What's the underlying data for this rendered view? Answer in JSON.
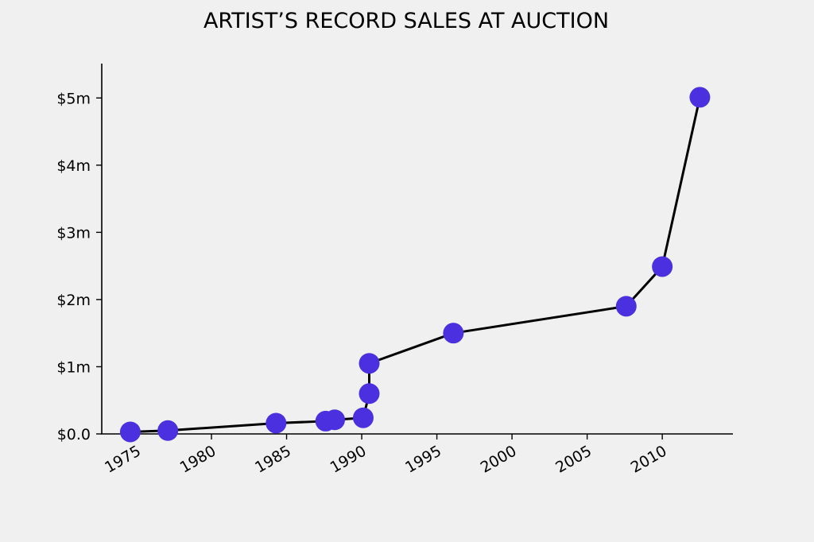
{
  "chart_data": {
    "type": "line",
    "title": "ARTIST’S RECORD SALES AT AUCTION",
    "xlabel": "",
    "ylabel": "",
    "xlim": [
      1972.7,
      2014.7
    ],
    "ylim": [
      0,
      5.5
    ],
    "x_ticks": [
      {
        "value": 1975,
        "label": "1975"
      },
      {
        "value": 1980,
        "label": "1980"
      },
      {
        "value": 1985,
        "label": "1985"
      },
      {
        "value": 1990,
        "label": "1990"
      },
      {
        "value": 1995,
        "label": "1995"
      },
      {
        "value": 2000,
        "label": "2000"
      },
      {
        "value": 2005,
        "label": "2005"
      },
      {
        "value": 2010,
        "label": "2010"
      }
    ],
    "y_ticks": [
      {
        "value": 0,
        "label": "$0.0"
      },
      {
        "value": 1,
        "label": "$1m"
      },
      {
        "value": 2,
        "label": "$2m"
      },
      {
        "value": 3,
        "label": "$3m"
      },
      {
        "value": 4,
        "label": "$4m"
      },
      {
        "value": 5,
        "label": "$5m"
      }
    ],
    "grid": false,
    "series": [
      {
        "color": "#4b30e0",
        "points": [
          {
            "x": 1974.6,
            "y": 0.03
          },
          {
            "x": 1977.1,
            "y": 0.05
          },
          {
            "x": 1984.3,
            "y": 0.16
          },
          {
            "x": 1987.6,
            "y": 0.19
          },
          {
            "x": 1988.2,
            "y": 0.21
          },
          {
            "x": 1990.1,
            "y": 0.24
          },
          {
            "x": 1990.5,
            "y": 0.6
          },
          {
            "x": 1990.5,
            "y": 1.05
          },
          {
            "x": 1996.1,
            "y": 1.5
          },
          {
            "x": 2007.6,
            "y": 1.9
          },
          {
            "x": 2010.0,
            "y": 2.49
          },
          {
            "x": 2012.5,
            "y": 5.01
          }
        ]
      }
    ]
  }
}
